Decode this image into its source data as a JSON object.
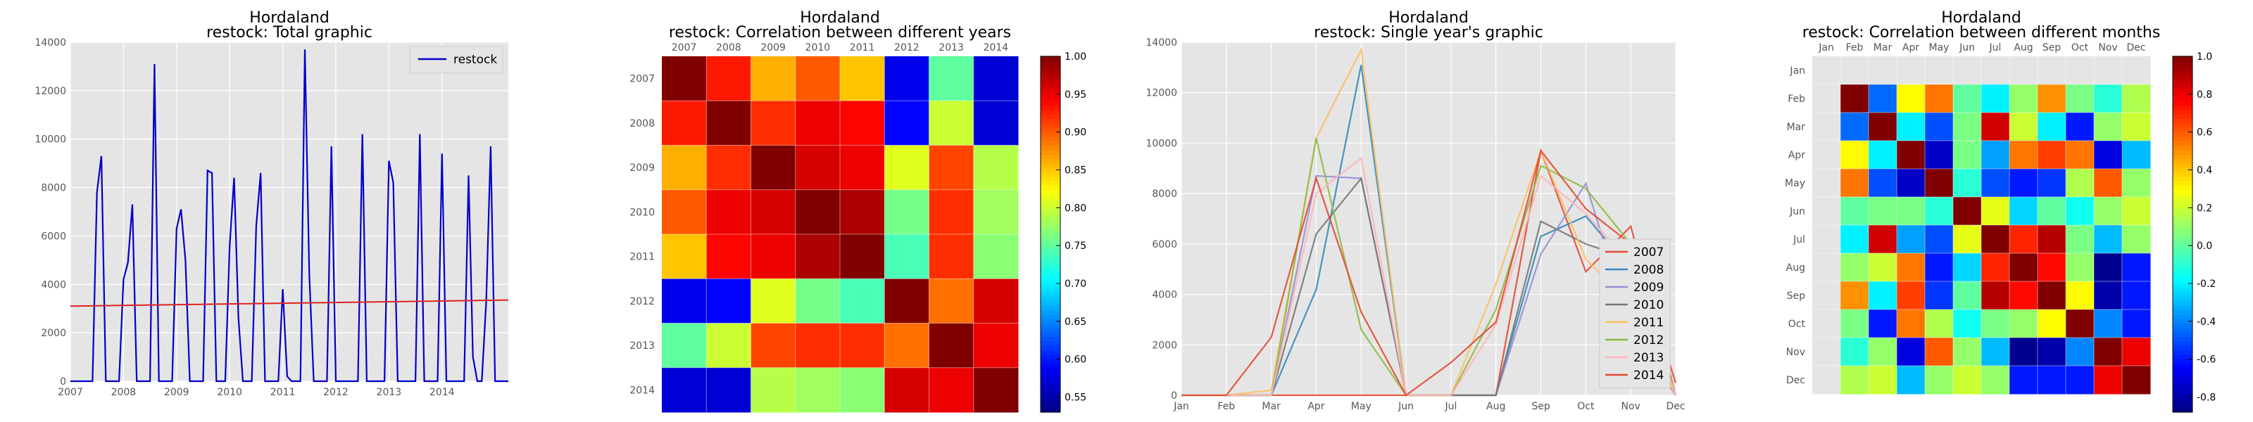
{
  "chart_data": [
    {
      "type": "line",
      "title": "Hordaland",
      "subtitle": "restock: Total graphic",
      "xlabel": "",
      "ylabel": "",
      "ylim": [
        0,
        14000
      ],
      "yticks": [
        "0",
        "2000",
        "4000",
        "6000",
        "8000",
        "10000",
        "12000",
        "14000"
      ],
      "xticks": [
        "2007",
        "2008",
        "2009",
        "2010",
        "2011",
        "2012",
        "2013",
        "2014"
      ],
      "legend": "top-right",
      "grid": true,
      "series": [
        {
          "name": "restock",
          "color": "#0000cc",
          "values": [
            0,
            0,
            0,
            0,
            0,
            0,
            7800,
            9300,
            0,
            0,
            0,
            0,
            4200,
            4900,
            7300,
            0,
            0,
            0,
            0,
            13100,
            0,
            0,
            0,
            0,
            6300,
            7100,
            5000,
            0,
            0,
            0,
            0,
            8700,
            8600,
            0,
            0,
            0,
            5600,
            8400,
            2600,
            0,
            0,
            0,
            6400,
            8600,
            0,
            0,
            0,
            0,
            3800,
            200,
            0,
            0,
            0,
            13700,
            4400,
            0,
            0,
            0,
            0,
            9700,
            0,
            0,
            0,
            0,
            0,
            0,
            10200,
            0,
            0,
            0,
            0,
            0,
            9100,
            8200,
            0,
            0,
            0,
            0,
            0,
            10200,
            0,
            0,
            0,
            0,
            9400,
            0,
            0,
            0,
            0,
            0,
            8500,
            1000,
            0,
            0,
            3300,
            9700,
            0,
            0,
            0,
            0
          ]
        }
      ],
      "trend": {
        "color": "#dd2222",
        "start": 3100,
        "end": 3350
      }
    },
    {
      "type": "heatmap",
      "title": "Hordaland",
      "subtitle": "restock: Correlation between different years",
      "labels": [
        "2007",
        "2008",
        "2009",
        "2010",
        "2011",
        "2012",
        "2013",
        "2014"
      ],
      "colorbar": {
        "min": 0.53,
        "max": 1.0,
        "ticks": [
          "0.55",
          "0.60",
          "0.65",
          "0.70",
          "0.75",
          "0.80",
          "0.85",
          "0.90",
          "0.95",
          "1.00"
        ]
      },
      "matrix": [
        [
          1.0,
          0.93,
          0.86,
          0.9,
          0.85,
          0.58,
          0.75,
          0.57
        ],
        [
          0.93,
          1.0,
          0.92,
          0.95,
          0.94,
          0.59,
          0.8,
          0.57
        ],
        [
          0.86,
          0.92,
          1.0,
          0.96,
          0.95,
          0.81,
          0.91,
          0.79
        ],
        [
          0.9,
          0.95,
          0.96,
          1.0,
          0.98,
          0.76,
          0.92,
          0.78
        ],
        [
          0.85,
          0.94,
          0.95,
          0.98,
          1.0,
          0.74,
          0.92,
          0.77
        ],
        [
          0.58,
          0.59,
          0.81,
          0.76,
          0.74,
          1.0,
          0.89,
          0.96
        ],
        [
          0.75,
          0.8,
          0.91,
          0.92,
          0.92,
          0.89,
          1.0,
          0.95
        ],
        [
          0.57,
          0.57,
          0.79,
          0.78,
          0.77,
          0.96,
          0.95,
          1.0
        ]
      ]
    },
    {
      "type": "line",
      "title": "Hordaland",
      "subtitle": "restock: Single year's graphic",
      "xlabel": "",
      "ylabel": "",
      "ylim": [
        0,
        14000
      ],
      "yticks": [
        "0",
        "2000",
        "4000",
        "6000",
        "8000",
        "10000",
        "12000",
        "14000"
      ],
      "categories": [
        "Jan",
        "Feb",
        "Mar",
        "Apr",
        "May",
        "Jun",
        "Jul",
        "Aug",
        "Sep",
        "Oct",
        "Nov",
        "Dec"
      ],
      "legend": "lower-right",
      "grid": true,
      "series": [
        {
          "name": "2007",
          "color": "#e24a33",
          "values": [
            0,
            0,
            0,
            0,
            0,
            0,
            0,
            0,
            9700,
            4900,
            6700,
            0
          ]
        },
        {
          "name": "2008",
          "color": "#348abd",
          "values": [
            0,
            0,
            0,
            4200,
            13100,
            0,
            0,
            0,
            6300,
            7100,
            5000,
            0
          ]
        },
        {
          "name": "2009",
          "color": "#988ed5",
          "values": [
            0,
            0,
            0,
            8700,
            8600,
            0,
            0,
            0,
            5600,
            8400,
            2600,
            0
          ]
        },
        {
          "name": "2010",
          "color": "#777777",
          "values": [
            0,
            0,
            0,
            6400,
            8600,
            0,
            0,
            0,
            6900,
            6000,
            5400,
            0
          ]
        },
        {
          "name": "2011",
          "color": "#fbc15e",
          "values": [
            0,
            0,
            200,
            10200,
            13700,
            0,
            0,
            4400,
            9700,
            5400,
            3600,
            0
          ]
        },
        {
          "name": "2012",
          "color": "#8eba42",
          "values": [
            0,
            0,
            0,
            10200,
            2600,
            0,
            0,
            3400,
            9100,
            8200,
            6000,
            0
          ]
        },
        {
          "name": "2013",
          "color": "#ffb5b8",
          "values": [
            0,
            0,
            0,
            8000,
            9400,
            0,
            0,
            2800,
            8700,
            7200,
            5200,
            0
          ]
        },
        {
          "name": "2014",
          "color": "#e24a33",
          "values": [
            0,
            0,
            2300,
            8600,
            3300,
            0,
            1300,
            2900,
            9700,
            7400,
            6000,
            500
          ]
        }
      ]
    },
    {
      "type": "heatmap",
      "title": "Hordaland",
      "subtitle": "restock: Correlation between different months",
      "labels": [
        "Jan",
        "Feb",
        "Mar",
        "Apr",
        "May",
        "Jun",
        "Jul",
        "Aug",
        "Sep",
        "Oct",
        "Nov",
        "Dec"
      ],
      "colorbar": {
        "min": -0.88,
        "max": 1.0,
        "ticks": [
          "-0.8",
          "-0.6",
          "-0.4",
          "-0.2",
          "0.0",
          "0.2",
          "0.4",
          "0.6",
          "0.8",
          "1.0"
        ]
      },
      "blank_row": 0,
      "matrix": [
        [
          null,
          null,
          null,
          null,
          null,
          null,
          null,
          null,
          null,
          null,
          null,
          null
        ],
        [
          null,
          1.0,
          -0.45,
          0.3,
          0.55,
          0.0,
          -0.2,
          0.1,
          0.5,
          0.05,
          -0.1,
          0.15
        ],
        [
          null,
          -0.45,
          1.0,
          -0.2,
          -0.5,
          0.05,
          0.85,
          0.2,
          -0.2,
          -0.6,
          0.1,
          0.2
        ],
        [
          null,
          0.3,
          -0.2,
          1.0,
          -0.75,
          0.05,
          -0.35,
          0.55,
          0.65,
          0.55,
          -0.7,
          -0.3
        ],
        [
          null,
          0.55,
          -0.5,
          -0.75,
          1.0,
          -0.1,
          -0.5,
          -0.6,
          -0.55,
          0.15,
          0.6,
          0.1
        ],
        [
          null,
          0.0,
          0.05,
          0.05,
          -0.1,
          1.0,
          0.25,
          -0.25,
          0.0,
          -0.15,
          0.1,
          0.2
        ],
        [
          null,
          -0.2,
          0.85,
          -0.35,
          -0.5,
          0.25,
          1.0,
          0.7,
          0.9,
          0.05,
          -0.3,
          0.1
        ],
        [
          null,
          0.1,
          0.2,
          0.55,
          -0.6,
          -0.25,
          0.7,
          1.0,
          0.75,
          0.1,
          -0.85,
          -0.6
        ],
        [
          null,
          0.5,
          -0.2,
          0.65,
          -0.55,
          0.0,
          0.9,
          0.75,
          1.0,
          0.3,
          -0.8,
          -0.6
        ],
        [
          null,
          0.05,
          -0.6,
          0.55,
          0.15,
          -0.15,
          0.05,
          0.1,
          0.3,
          1.0,
          -0.4,
          -0.6
        ],
        [
          null,
          -0.1,
          0.1,
          -0.7,
          0.6,
          0.1,
          -0.3,
          -0.85,
          -0.8,
          -0.4,
          1.0,
          0.8
        ],
        [
          null,
          0.15,
          0.2,
          -0.3,
          0.1,
          0.2,
          0.1,
          -0.6,
          -0.6,
          -0.6,
          0.8,
          1.0
        ]
      ]
    }
  ]
}
